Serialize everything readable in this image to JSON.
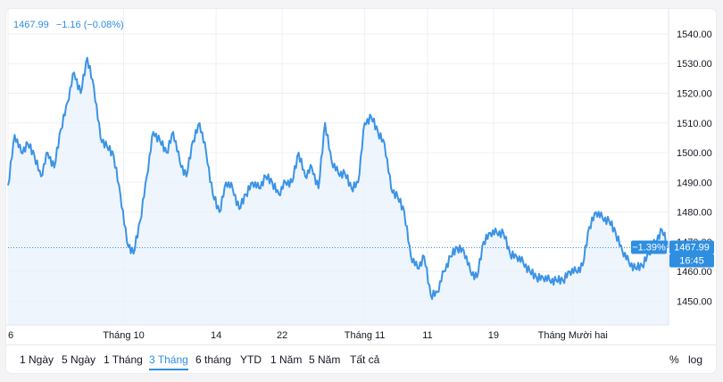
{
  "legend": {
    "price": "1467.99",
    "change": "−1.16 (−0.08%)"
  },
  "badges": {
    "percent": "−1.39%",
    "price": "1467.99",
    "time": "16:45"
  },
  "range_buttons": [
    "1 Ngày",
    "5 Ngày",
    "1 Tháng",
    "3 Tháng",
    "6 tháng",
    "YTD",
    "1 Năm",
    "5 Năm",
    "Tất cả"
  ],
  "active_range": "3 Tháng",
  "tools": {
    "percent": "%",
    "log": "log"
  },
  "colors": {
    "line": "#3b93e6",
    "fill": "#eaf3fd",
    "grid": "#eef0f3",
    "badge": "#2e8ee0"
  },
  "chart_data": {
    "type": "line",
    "ylim": [
      1442,
      1546
    ],
    "y_ticks": [
      1450,
      1460,
      1470,
      1480,
      1490,
      1500,
      1510,
      1520,
      1530,
      1540
    ],
    "y_tick_labels": [
      "1450.00",
      "1460.00",
      "1470.00",
      "1480.00",
      "1490.00",
      "1500.00",
      "1510.00",
      "1520.00",
      "1530.00",
      "1540.00"
    ],
    "x_ticks": [
      {
        "label": "6",
        "x": 0
      },
      {
        "label": "Tháng 10",
        "x": 17.5
      },
      {
        "label": "14",
        "x": 31.5
      },
      {
        "label": "22",
        "x": 41.5
      },
      {
        "label": "Tháng 11",
        "x": 54
      },
      {
        "label": "11",
        "x": 63.5
      },
      {
        "label": "19",
        "x": 73.5
      },
      {
        "label": "Tháng Mười hai",
        "x": 85.5
      }
    ],
    "xlim": [
      0,
      100
    ],
    "last_value": 1467.99,
    "x": [
      0,
      1,
      2,
      3,
      4,
      5,
      6,
      7,
      8,
      9,
      10,
      11,
      12,
      13,
      14,
      15,
      16,
      17,
      18,
      19,
      20,
      21,
      22,
      23,
      24,
      25,
      26,
      27,
      28,
      29,
      30,
      31,
      32,
      33,
      34,
      35,
      36,
      37,
      38,
      39,
      40,
      41,
      42,
      43,
      44,
      45,
      46,
      47,
      48,
      49,
      50,
      51,
      52,
      53,
      54,
      55,
      56,
      57,
      58,
      59,
      60,
      61,
      62,
      63,
      64,
      65,
      66,
      67,
      68,
      69,
      70,
      71,
      72,
      73,
      74,
      75,
      76,
      77,
      78,
      79,
      80,
      81,
      82,
      83,
      84,
      85,
      86,
      87,
      88,
      89,
      90,
      91,
      92,
      93,
      94,
      95,
      96,
      97,
      98,
      99,
      100
    ],
    "values": [
      1489,
      1506,
      1500,
      1503,
      1499,
      1492,
      1500,
      1495,
      1508,
      1517,
      1527,
      1520,
      1532,
      1522,
      1505,
      1502,
      1499,
      1486,
      1470,
      1466,
      1477,
      1492,
      1507,
      1504,
      1500,
      1507,
      1497,
      1492,
      1504,
      1510,
      1500,
      1486,
      1480,
      1490,
      1488,
      1481,
      1486,
      1490,
      1488,
      1492,
      1490,
      1486,
      1490,
      1490,
      1500,
      1492,
      1495,
      1488,
      1510,
      1497,
      1493,
      1493,
      1488,
      1490,
      1510,
      1512,
      1507,
      1503,
      1488,
      1485,
      1480,
      1465,
      1461,
      1465,
      1452,
      1453,
      1460,
      1465,
      1468,
      1467,
      1460,
      1458,
      1470,
      1473,
      1473,
      1473,
      1466,
      1465,
      1463,
      1460,
      1458,
      1458,
      1457,
      1457,
      1457,
      1460,
      1460,
      1462,
      1475,
      1480,
      1478,
      1477,
      1473,
      1467,
      1463,
      1461,
      1462,
      1466,
      1470,
      1474,
      1467.99
    ]
  }
}
